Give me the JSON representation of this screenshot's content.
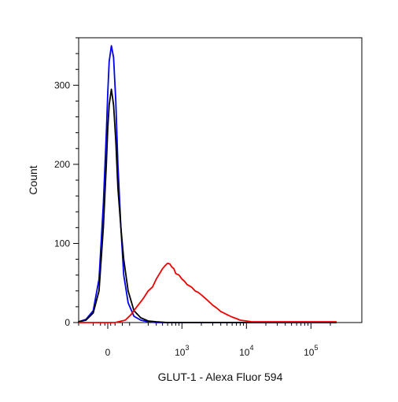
{
  "chart_data": {
    "type": "line",
    "title": "",
    "xlabel": "GLUT-1 - Alexa Fluor 594",
    "ylabel": "Count",
    "x_scale": "biexponential",
    "xlim": [
      -300,
      250000
    ],
    "ylim": [
      0,
      360
    ],
    "grid": false,
    "legend": "none",
    "y_ticks": [
      {
        "value": 0,
        "label": "0"
      },
      {
        "value": 100,
        "label": "100"
      },
      {
        "value": 200,
        "label": "200"
      },
      {
        "value": 300,
        "label": "300"
      }
    ],
    "x_ticks": [
      {
        "value": 0,
        "base": "0",
        "exp": ""
      },
      {
        "value": 1000,
        "base": "10",
        "exp": "3"
      },
      {
        "value": 10000,
        "base": "10",
        "exp": "4"
      },
      {
        "value": 100000,
        "base": "10",
        "exp": "5"
      }
    ],
    "series": [
      {
        "color": "#0000ee",
        "x": [
          -300,
          -200,
          -150,
          -100,
          -60,
          -30,
          -10,
          0,
          10,
          25,
          40,
          55,
          70,
          90,
          110,
          140,
          180,
          230,
          300,
          400,
          600,
          1000,
          10000,
          250000
        ],
        "y": [
          0,
          1,
          4,
          15,
          55,
          150,
          240,
          290,
          330,
          350,
          335,
          280,
          200,
          120,
          60,
          25,
          8,
          3,
          1,
          0,
          0,
          0,
          0,
          0
        ]
      },
      {
        "color": "#000000",
        "x": [
          -300,
          -200,
          -150,
          -100,
          -60,
          -30,
          -10,
          0,
          10,
          25,
          40,
          55,
          70,
          90,
          110,
          140,
          180,
          230,
          300,
          400,
          600,
          1000,
          10000,
          250000
        ],
        "y": [
          0,
          1,
          3,
          12,
          40,
          120,
          200,
          245,
          275,
          295,
          275,
          230,
          170,
          120,
          80,
          40,
          15,
          6,
          2,
          1,
          0,
          0,
          0,
          0
        ]
      },
      {
        "color": "#ee0000",
        "x": [
          -300,
          50,
          120,
          160,
          200,
          250,
          300,
          350,
          400,
          450,
          500,
          550,
          600,
          650,
          700,
          750,
          800,
          900,
          1000,
          1100,
          1200,
          1400,
          1600,
          1800,
          2000,
          2500,
          3000,
          3500,
          4000,
          5000,
          6000,
          7000,
          8000,
          10000,
          12000,
          20000,
          50000,
          100000,
          250000
        ],
        "y": [
          0,
          0,
          3,
          10,
          20,
          30,
          40,
          45,
          55,
          62,
          68,
          72,
          75,
          74,
          70,
          68,
          62,
          60,
          55,
          52,
          48,
          45,
          40,
          38,
          35,
          28,
          22,
          18,
          14,
          10,
          7,
          5,
          3,
          2,
          1,
          1,
          1,
          1,
          1
        ]
      }
    ]
  }
}
